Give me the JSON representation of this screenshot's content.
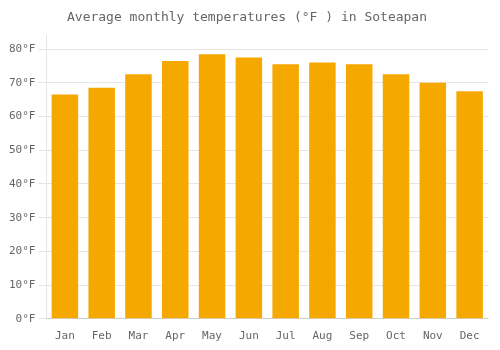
{
  "chart_data": {
    "type": "bar",
    "title": "Average monthly temperatures (°F ) in Soteapan",
    "categories": [
      "Jan",
      "Feb",
      "Mar",
      "Apr",
      "May",
      "Jun",
      "Jul",
      "Aug",
      "Sep",
      "Oct",
      "Nov",
      "Dec"
    ],
    "values": [
      66.5,
      68.5,
      72.5,
      76.5,
      78.5,
      77.5,
      75.5,
      76.0,
      75.5,
      72.5,
      70.0,
      67.5
    ],
    "color": "#F5A800",
    "ylim": [
      0,
      84
    ],
    "yticks": [
      {
        "value": 0,
        "label": "0°F"
      },
      {
        "value": 10,
        "label": "10°F"
      },
      {
        "value": 20,
        "label": "20°F"
      },
      {
        "value": 30,
        "label": "30°F"
      },
      {
        "value": 40,
        "label": "40°F"
      },
      {
        "value": 50,
        "label": "50°F"
      },
      {
        "value": 60,
        "label": "60°F"
      },
      {
        "value": 70,
        "label": "70°F"
      },
      {
        "value": 80,
        "label": "80°F"
      }
    ],
    "grid": true
  }
}
